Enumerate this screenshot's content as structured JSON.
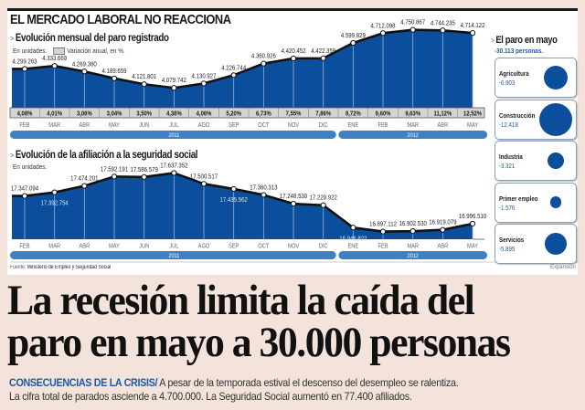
{
  "infographic": {
    "title": "EL MERCADO LABORAL NO REACCIONA",
    "source_label": "Fuente:",
    "source": "Ministerio de Empleo y Seguridad Social",
    "credit": "Expansión",
    "colors": {
      "fill": "#0b4f9c",
      "line": "#111111",
      "year_band": "#3f7fc4",
      "pct_band": "#d4d4d4",
      "accent": "#1d5aa6"
    }
  },
  "chart_data": [
    {
      "type": "area",
      "title": "Evolución mensual del paro registrado",
      "subtitle": "En unidades.",
      "legend_label": "Variación anual, en %.",
      "x": [
        "FEB",
        "MAR",
        "ABR",
        "MAY",
        "JUN",
        "JUL",
        "AGO",
        "SEP",
        "OCT",
        "NOV",
        "DIC",
        "ENE",
        "FEB",
        "MAR",
        "ABR",
        "MAY"
      ],
      "years": [
        {
          "label": "2011",
          "from": 0,
          "to": 10
        },
        {
          "label": "2012",
          "from": 11,
          "to": 15
        }
      ],
      "values": [
        4299263,
        4333669,
        4269360,
        4189659,
        4121801,
        4079742,
        4130927,
        4226744,
        4360926,
        4420452,
        4422359,
        4599829,
        4712098,
        4750867,
        4744235,
        4714122
      ],
      "value_labels": [
        "4.299.263",
        "4.333.669",
        "4.269.360",
        "4.189.659",
        "4.121.801",
        "4.079.742",
        "4.130.927",
        "4.226.744",
        "4.360.926",
        "4.420.452",
        "4.422.359",
        "4.599.829",
        "4.712.098",
        "4.750.867",
        "4.744.235",
        "4.714.122"
      ],
      "annual_change_pct": [
        "4,08%",
        "4,01%",
        "3,06%",
        "3,04%",
        "3,50%",
        "4,38%",
        "4,06%",
        "5,20%",
        "6,73%",
        "7,55%",
        "7,86%",
        "8,72%",
        "9,60%",
        "9,63%",
        "11,12%",
        "12,52%"
      ],
      "ylim": [
        3850000,
        4800000
      ]
    },
    {
      "type": "area",
      "title": "Evolución de la afiliación a la seguridad social",
      "subtitle": "En unidades.",
      "x": [
        "FEB",
        "MAR",
        "ABR",
        "MAY",
        "JUN",
        "JUL",
        "AGO",
        "SEP",
        "OCT",
        "NOV",
        "DIC",
        "ENE",
        "FEB",
        "MAR",
        "ABR",
        "MAY"
      ],
      "years": [
        {
          "label": "2011",
          "from": 0,
          "to": 10
        },
        {
          "label": "2012",
          "from": 11,
          "to": 15
        }
      ],
      "values": [
        17347094,
        17392754,
        17474201,
        17592191,
        17586579,
        17637352,
        17500517,
        17435562,
        17360313,
        17248530,
        17229922,
        16946822,
        16897112,
        16902530,
        16919079,
        16996510
      ],
      "value_labels": [
        "17.347.094",
        "17.392.754",
        "17.474.201",
        "17.592.191",
        "17.586.579",
        "17.637.352",
        "17.500.517",
        "17.435.562",
        "17.360.313",
        "17.248.530",
        "17.229.922",
        "16.946.822",
        "16.897.112",
        "16.902.530",
        "16.919.079",
        "16.996.510"
      ],
      "label_inside": [
        false,
        true,
        false,
        false,
        false,
        false,
        false,
        true,
        false,
        false,
        false,
        true,
        false,
        false,
        false,
        false
      ],
      "ylim": [
        16800000,
        17700000
      ]
    },
    {
      "type": "bubble",
      "title": "El paro en mayo",
      "subtitle": "-30.113 personas.",
      "categories": [
        "Agricultura",
        "Construcción",
        "Industria",
        "Primer empleo",
        "Servicios"
      ],
      "values": [
        -6903,
        -12418,
        -3321,
        -1576,
        -5895
      ],
      "value_labels": [
        "-6.903",
        "-12.418",
        "-3.321",
        "-1.576",
        "-5.895"
      ]
    }
  ],
  "article": {
    "headline_line1": "La recesión limita la caída del",
    "headline_line2": "paro en mayo a 30.000 personas",
    "kicker": "CONSECUENCIAS DE LA CRISIS/",
    "deck_line1": " A pesar de la temporada estival el descenso del desempleo se ralentiza.",
    "deck_line2": "La cifra total de  parados asciende a 4.700.000. La Seguridad Social aumentó en 77.400 afiliados."
  }
}
